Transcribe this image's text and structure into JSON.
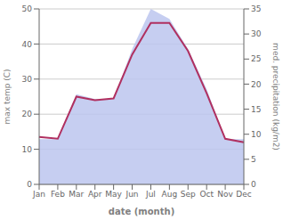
{
  "chart_data": {
    "type": "line",
    "categories": [
      "Jan",
      "Feb",
      "Mar",
      "Apr",
      "May",
      "Jun",
      "Jul",
      "Aug",
      "Sep",
      "Oct",
      "Nov",
      "Dec"
    ],
    "xlabel": "date (month)",
    "ylabel": "max temp (C)",
    "y2label": "med. precipitation (kg/m2)",
    "ylim": [
      0,
      50
    ],
    "yticks": [
      0,
      10,
      20,
      30,
      40,
      50
    ],
    "y2lim": [
      0,
      35
    ],
    "y2ticks": [
      0,
      5,
      10,
      15,
      20,
      25,
      30,
      35
    ],
    "grid": true,
    "series": [
      {
        "type": "area",
        "color": "#bcc5ee",
        "axis": "y2",
        "values": [
          9,
          9,
          18,
          17,
          17,
          27,
          35,
          33,
          27,
          19,
          9,
          9
        ]
      },
      {
        "type": "line",
        "color": "#b03060",
        "values": [
          13.5,
          13,
          25,
          24,
          24.5,
          37,
          46,
          46,
          38,
          26,
          13,
          12
        ]
      }
    ]
  }
}
